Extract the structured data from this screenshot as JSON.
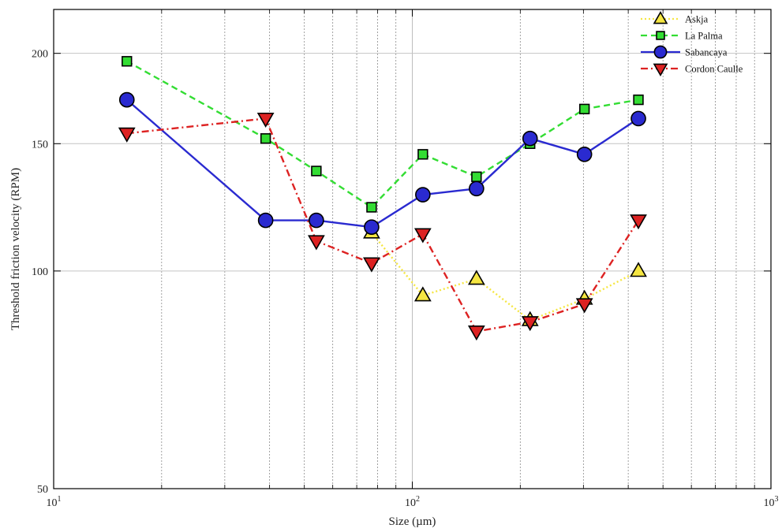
{
  "chart_data": {
    "type": "line",
    "xlabel": "Size (µm)",
    "ylabel": "Threshold friction velocity (RPM)",
    "xscale": "log",
    "yscale": "log",
    "xlim": [
      10,
      1000
    ],
    "ylim": [
      50,
      230
    ],
    "x_ticks": [
      {
        "value": 10,
        "base": "10",
        "exp": "1"
      },
      {
        "value": 100,
        "base": "10",
        "exp": "2"
      },
      {
        "value": 1000,
        "base": "10",
        "exp": "3"
      }
    ],
    "y_ticks": [
      {
        "value": 50,
        "label": "50"
      },
      {
        "value": 100,
        "label": "100"
      },
      {
        "value": 150,
        "label": "150"
      },
      {
        "value": 200,
        "label": "200"
      }
    ],
    "grid": true,
    "legend_position": "top-right",
    "series": [
      {
        "name": "Askja",
        "color": "#f5e642",
        "linestyle": "dotted",
        "marker": "triangle-up",
        "x": [
          77,
          107,
          151,
          213,
          302,
          427
        ],
        "y": [
          113,
          92.5,
          97.5,
          85.5,
          91.5,
          100
        ]
      },
      {
        "name": "La Palma",
        "color": "#33dd33",
        "linestyle": "dashed",
        "marker": "square",
        "x": [
          16,
          39,
          54,
          77,
          107,
          151,
          213,
          302,
          427
        ],
        "y": [
          195,
          152.5,
          137.5,
          122.5,
          145,
          135,
          150,
          167.5,
          172.5
        ]
      },
      {
        "name": "Sabancaya",
        "color": "#2a2ad0",
        "linestyle": "solid",
        "marker": "circle",
        "x": [
          16,
          39,
          54,
          77,
          107,
          151,
          213,
          302,
          427
        ],
        "y": [
          172.5,
          117.5,
          117.5,
          115,
          127.5,
          130,
          152.5,
          145,
          162.5
        ]
      },
      {
        "name": "Cordon Caulle",
        "color": "#dd2222",
        "linestyle": "dashdot",
        "marker": "triangle-down",
        "x": [
          16,
          39,
          54,
          77,
          107,
          151,
          213,
          302,
          427
        ],
        "y": [
          155,
          162.5,
          110,
          102.5,
          112.5,
          82.5,
          85,
          90,
          117.5
        ]
      }
    ]
  }
}
